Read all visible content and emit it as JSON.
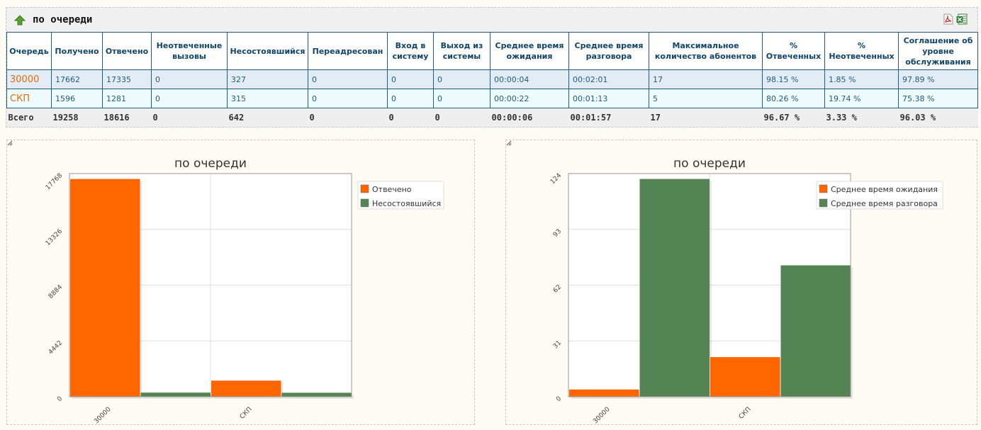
{
  "report": {
    "title": "по очереди",
    "icons": {
      "up": "up-arrow-icon",
      "pdf": "pdf-export-icon",
      "excel": "excel-export-icon"
    }
  },
  "table": {
    "headers": [
      "Очередь",
      "Получено",
      "Отвечено",
      "Неотвеченные вызовы",
      "Несостоявшийся",
      "Переадресован",
      "Вход в систему",
      "Выход из системы",
      "Среднее время ожидания",
      "Среднее время разговора",
      "Максимальное количество абонентов",
      "% Отвеченных",
      "% Неотвеченных",
      "Соглашение об уровне обслуживания"
    ],
    "rows": [
      [
        "30000",
        "17662",
        "17335",
        "0",
        "327",
        "0",
        "0",
        "0",
        "00:00:04",
        "00:02:01",
        "17",
        "98.15 %",
        "1.85 %",
        "97.89 %"
      ],
      [
        "СКП",
        "1596",
        "1281",
        "0",
        "315",
        "0",
        "0",
        "0",
        "00:00:22",
        "00:01:13",
        "5",
        "80.26 %",
        "19.74 %",
        "75.38 %"
      ]
    ],
    "total": [
      "Всего",
      "19258",
      "18616",
      "0",
      "642",
      "0",
      "0",
      "0",
      "00:00:06",
      "00:01:57",
      "17",
      "96.67 %",
      "3.33 %",
      "96.03 %"
    ]
  },
  "chart_data": [
    {
      "type": "bar",
      "title": "по очереди",
      "categories": [
        "30000",
        "СКП"
      ],
      "series": [
        {
          "name": "Отвечено",
          "values": [
            17335,
            1281
          ],
          "color": "#ff6600"
        },
        {
          "name": "Несостоявшийся",
          "values": [
            327,
            315
          ],
          "color": "#548354"
        }
      ],
      "yticks": [
        0,
        4442,
        8884,
        13326,
        17768
      ],
      "ylim": [
        0,
        17768
      ],
      "grid": true,
      "legend": "top-right"
    },
    {
      "type": "bar",
      "title": "по очереди",
      "categories": [
        "30000",
        "СКП"
      ],
      "series": [
        {
          "name": "Среднее время ожидания",
          "values": [
            4,
            22
          ],
          "color": "#ff6600"
        },
        {
          "name": "Среднее время разговора",
          "values": [
            121,
            73
          ],
          "color": "#548354"
        }
      ],
      "yticks": [
        0,
        31,
        62,
        93,
        124
      ],
      "ylim": [
        0,
        124
      ],
      "grid": true,
      "legend": "top-right"
    }
  ]
}
